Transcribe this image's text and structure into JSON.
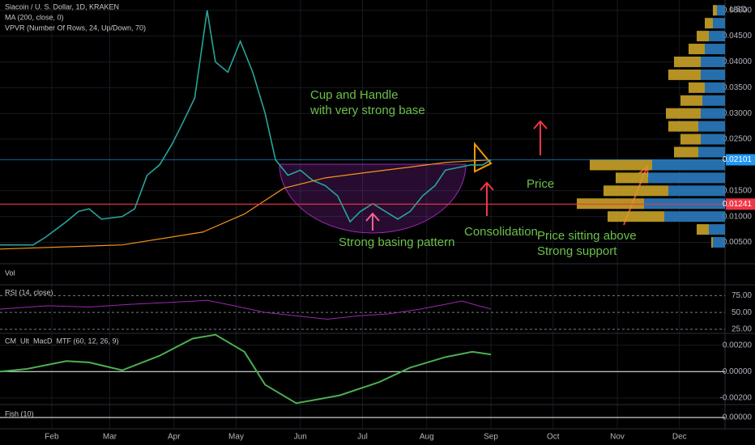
{
  "chart_data": {
    "type": "line",
    "title": "Siacoin / U. S. Dollar, 1D, KRAKEN",
    "indicators": [
      "MA (200, close, 0)",
      "VPVR (Number Of Rows, 24, Up/Down, 70)"
    ],
    "currency": "USD",
    "x": [
      7,
      23,
      29,
      39,
      45,
      50,
      56,
      66,
      72,
      78,
      84,
      90,
      95,
      101,
      107,
      111,
      117,
      123,
      129,
      135,
      140,
      146,
      152,
      158,
      164,
      170,
      176,
      181,
      187,
      193,
      199,
      205,
      211,
      217,
      222,
      228,
      234,
      240,
      244
    ],
    "series": [
      {
        "color": "#26a69a",
        "values": [
          0.0045,
          0.0045,
          0.006,
          0.009,
          0.011,
          0.0115,
          0.0095,
          0.01,
          0.0115,
          0.018,
          0.02,
          0.024,
          0.028,
          0.033,
          0.05,
          0.04,
          0.038,
          0.044,
          0.038,
          0.03,
          0.021,
          0.018,
          0.019,
          0.017,
          0.016,
          0.014,
          0.009,
          0.011,
          0.0125,
          0.011,
          0.0095,
          0.011,
          0.014,
          0.016,
          0.019,
          0.0195,
          0.02,
          0.02,
          0.021
        ]
      },
      {
        "color": "#f7931a",
        "x": [
          7,
          66,
          105,
          125,
          144,
          164,
          183,
          203,
          222,
          244
        ],
        "values": [
          0.0037,
          0.0045,
          0.007,
          0.0105,
          0.0155,
          0.0175,
          0.0185,
          0.0195,
          0.0205,
          0.021
        ]
      }
    ],
    "xlim": [
      7,
      357
    ],
    "xticks": [
      {
        "value": 32,
        "label": "Feb"
      },
      {
        "value": 60,
        "label": "Mar"
      },
      {
        "value": 91,
        "label": "Apr"
      },
      {
        "value": 121,
        "label": "May"
      },
      {
        "value": 152,
        "label": "Jun"
      },
      {
        "value": 182,
        "label": "Jul"
      },
      {
        "value": 213,
        "label": "Aug"
      },
      {
        "value": 244,
        "label": "Sep"
      },
      {
        "value": 274,
        "label": "Oct"
      },
      {
        "value": 305,
        "label": "Nov"
      },
      {
        "value": 335,
        "label": "Dec"
      }
    ],
    "ylim": [
      0.001,
      0.052
    ],
    "yticks": [
      {
        "value": 0.005,
        "label": "0.00500"
      },
      {
        "value": 0.01,
        "label": "0.01000"
      },
      {
        "value": 0.015,
        "label": "0.01500"
      },
      {
        "value": 0.025,
        "label": "0.02500"
      },
      {
        "value": 0.03,
        "label": "0.03000"
      },
      {
        "value": 0.035,
        "label": "0.03500"
      },
      {
        "value": 0.04,
        "label": "0.04000"
      },
      {
        "value": 0.045,
        "label": "0.04500"
      },
      {
        "value": 0.05,
        "label": "0.05000"
      }
    ],
    "price_markers": [
      {
        "value": 0.02101,
        "color": "#2196f3"
      },
      {
        "value": 0.01241,
        "color": "#f23645"
      }
    ],
    "annotations": [
      {
        "lines": [
          "Cup and Handle",
          "with very strong base"
        ]
      },
      {
        "lines": [
          "Strong basing pattern"
        ]
      },
      {
        "lines": [
          "Consolidation"
        ]
      },
      {
        "lines": [
          "Price"
        ]
      },
      {
        "lines": [
          "Price sitting above",
          "Strong support"
        ]
      }
    ],
    "volume_profile": {
      "up_color": "#c9a227",
      "down_color": "#2a7bbf",
      "prices": [
        0.005,
        0.0075,
        0.01,
        0.0125,
        0.015,
        0.0175,
        0.02,
        0.0225,
        0.025,
        0.0275,
        0.03,
        0.0325,
        0.035,
        0.0375,
        0.04,
        0.0425,
        0.045,
        0.0475,
        0.05
      ],
      "up": [
        2,
        15,
        70,
        83,
        80,
        40,
        77,
        30,
        25,
        37,
        43,
        27,
        20,
        40,
        33,
        20,
        15,
        10,
        5
      ],
      "down": [
        15,
        20,
        75,
        100,
        70,
        95,
        90,
        33,
        30,
        33,
        30,
        28,
        25,
        30,
        30,
        25,
        20,
        15,
        10
      ]
    },
    "panes": {
      "volume": {
        "title": "Vol"
      },
      "rsi": {
        "title": "RSI (14, close)",
        "color": "#9c27b0",
        "ylim": [
          19,
          91
        ],
        "yticks": [
          {
            "value": 75,
            "label": "75.00"
          },
          {
            "value": 50,
            "label": "50.00"
          },
          {
            "value": 25,
            "label": "25.00"
          }
        ],
        "x": [
          7,
          30,
          50,
          70,
          90,
          107,
          120,
          135,
          150,
          165,
          180,
          195,
          210,
          222,
          230,
          238,
          244
        ],
        "values": [
          55,
          60,
          58,
          62,
          65,
          68,
          60,
          50,
          45,
          40,
          45,
          48,
          55,
          62,
          67,
          60,
          55
        ]
      },
      "macd": {
        "title": "CM_Ult_MacD_MTF (60, 12, 26, 9)",
        "color": "#4caf50",
        "ylim": [
          -0.0025,
          0.0029
        ],
        "yticks": [
          {
            "value": 0.002,
            "label": "0.00200"
          },
          {
            "value": 0,
            "label": "0.00000"
          },
          {
            "value": -0.002,
            "label": "-0.00200"
          }
        ],
        "x": [
          7,
          20,
          39,
          50,
          66,
          84,
          100,
          111,
          125,
          135,
          150,
          171,
          190,
          205,
          222,
          235,
          244
        ],
        "values": [
          0,
          0.0002,
          0.0008,
          0.0007,
          0.0001,
          0.0012,
          0.0025,
          0.0028,
          0.0015,
          -0.001,
          -0.0024,
          -0.0018,
          -0.0008,
          0.0003,
          0.0011,
          0.0015,
          0.0013
        ]
      },
      "fish": {
        "title": "Fish (10)",
        "ylim": [
          -1,
          1
        ],
        "yticks": [
          {
            "value": 0,
            "label": "0.00000"
          }
        ]
      }
    }
  }
}
